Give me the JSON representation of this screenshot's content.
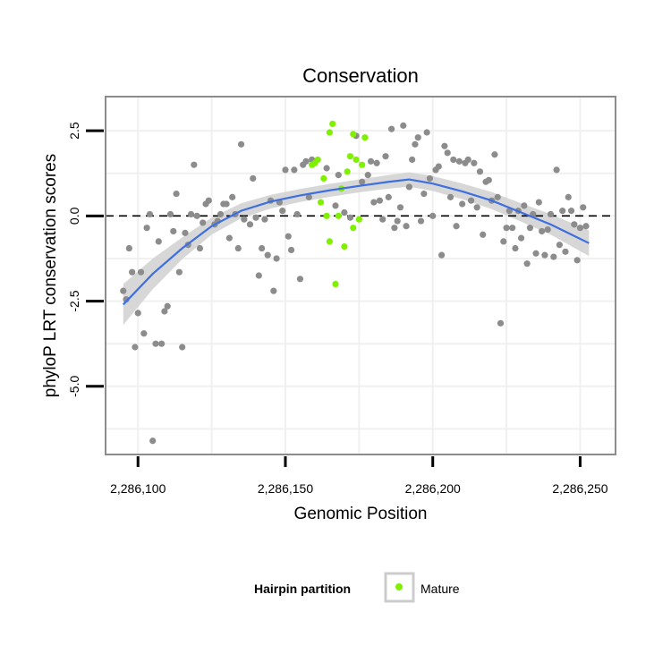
{
  "chart_data": {
    "type": "scatter",
    "title": "Conservation",
    "xlabel": "Genomic Position",
    "ylabel": "phyloP LRT conservation scores",
    "xlim": [
      2286089,
      2286262
    ],
    "ylim": [
      -7.0,
      3.5
    ],
    "x_ticks": [
      {
        "value": 2286100,
        "label": "2,286,100"
      },
      {
        "value": 2286150,
        "label": "2,286,150"
      },
      {
        "value": 2286200,
        "label": "2,286,200"
      },
      {
        "value": 2286250,
        "label": "2,286,250"
      }
    ],
    "y_ticks": [
      {
        "value": 2.5,
        "label": "2.5"
      },
      {
        "value": 0.0,
        "label": "0.0"
      },
      {
        "value": -2.5,
        "label": "-2.5"
      },
      {
        "value": -5.0,
        "label": "-5.0"
      }
    ],
    "reference_line": {
      "y": 0,
      "style": "dashed"
    },
    "grid": true,
    "colors": {
      "other": "#8c8c8c",
      "mature": "#7ff000",
      "smooth": "#3d6fe0",
      "ribbon": "#d3d3d3",
      "panel_border": "#8c8c8c",
      "grid": "#f0f0f0"
    },
    "legend": {
      "title": "Hairpin partition",
      "position": "bottom",
      "entries": [
        "Mature"
      ]
    },
    "series": [
      {
        "name": "",
        "color": "other",
        "points": [
          [
            2286095,
            -2.2
          ],
          [
            2286096,
            -2.45
          ],
          [
            2286097,
            -0.95
          ],
          [
            2286098,
            -1.65
          ],
          [
            2286099,
            -3.85
          ],
          [
            2286100,
            -2.85
          ],
          [
            2286101,
            -1.65
          ],
          [
            2286102,
            -3.45
          ],
          [
            2286103,
            -0.35
          ],
          [
            2286104,
            0.05
          ],
          [
            2286105,
            -6.6
          ],
          [
            2286106,
            -3.75
          ],
          [
            2286107,
            -0.75
          ],
          [
            2286108,
            -3.75
          ],
          [
            2286109,
            -2.8
          ],
          [
            2286110,
            -2.65
          ],
          [
            2286111,
            0.05
          ],
          [
            2286112,
            -0.45
          ],
          [
            2286113,
            0.65
          ],
          [
            2286114,
            -1.65
          ],
          [
            2286115,
            -3.85
          ],
          [
            2286116,
            -0.5
          ],
          [
            2286117,
            -0.85
          ],
          [
            2286118,
            0.05
          ],
          [
            2286119,
            1.5
          ],
          [
            2286120,
            0.0
          ],
          [
            2286121,
            -0.95
          ],
          [
            2286122,
            -0.2
          ],
          [
            2286123,
            0.35
          ],
          [
            2286124,
            0.45
          ],
          [
            2286126,
            -0.25
          ],
          [
            2286127,
            -0.15
          ],
          [
            2286128,
            0.05
          ],
          [
            2286129,
            0.35
          ],
          [
            2286130,
            0.35
          ],
          [
            2286131,
            -0.65
          ],
          [
            2286132,
            0.55
          ],
          [
            2286133,
            0.05
          ],
          [
            2286134,
            -0.95
          ],
          [
            2286135,
            2.1
          ],
          [
            2286136,
            -0.1
          ],
          [
            2286138,
            -0.25
          ],
          [
            2286139,
            1.1
          ],
          [
            2286140,
            -0.05
          ],
          [
            2286141,
            -1.75
          ],
          [
            2286142,
            -0.95
          ],
          [
            2286143,
            -0.1
          ],
          [
            2286144,
            -1.15
          ],
          [
            2286145,
            0.45
          ],
          [
            2286146,
            -2.2
          ],
          [
            2286147,
            -1.25
          ],
          [
            2286148,
            0.4
          ],
          [
            2286149,
            0.15
          ],
          [
            2286150,
            1.35
          ],
          [
            2286151,
            -0.6
          ],
          [
            2286152,
            -1.0
          ],
          [
            2286153,
            1.35
          ],
          [
            2286154,
            0.05
          ],
          [
            2286155,
            -1.85
          ],
          [
            2286156,
            1.5
          ],
          [
            2286157,
            1.6
          ],
          [
            2286158,
            0.55
          ],
          [
            2286159,
            1.65
          ],
          [
            2286164,
            1.4
          ],
          [
            2286167,
            0.3
          ],
          [
            2286168,
            1.2
          ],
          [
            2286170,
            0.1
          ],
          [
            2286172,
            -0.05
          ],
          [
            2286174,
            2.35
          ],
          [
            2286176,
            1.0
          ],
          [
            2286178,
            1.2
          ],
          [
            2286179,
            1.6
          ],
          [
            2286180,
            0.4
          ],
          [
            2286181,
            1.55
          ],
          [
            2286182,
            0.45
          ],
          [
            2286183,
            -0.1
          ],
          [
            2286184,
            1.75
          ],
          [
            2286185,
            0.55
          ],
          [
            2286186,
            2.55
          ],
          [
            2286187,
            -0.35
          ],
          [
            2286188,
            -0.15
          ],
          [
            2286189,
            0.25
          ],
          [
            2286190,
            2.65
          ],
          [
            2286191,
            -0.3
          ],
          [
            2286192,
            0.85
          ],
          [
            2286193,
            1.65
          ],
          [
            2286194,
            2.1
          ],
          [
            2286195,
            2.3
          ],
          [
            2286196,
            -0.15
          ],
          [
            2286197,
            0.65
          ],
          [
            2286198,
            2.45
          ],
          [
            2286199,
            1.1
          ],
          [
            2286200,
            0.0
          ],
          [
            2286201,
            1.35
          ],
          [
            2286202,
            1.45
          ],
          [
            2286203,
            -1.15
          ],
          [
            2286204,
            2.05
          ],
          [
            2286205,
            1.85
          ],
          [
            2286206,
            0.55
          ],
          [
            2286207,
            1.65
          ],
          [
            2286208,
            -0.3
          ],
          [
            2286209,
            1.6
          ],
          [
            2286210,
            0.35
          ],
          [
            2286211,
            1.55
          ],
          [
            2286212,
            1.65
          ],
          [
            2286213,
            0.45
          ],
          [
            2286214,
            1.55
          ],
          [
            2286215,
            0.25
          ],
          [
            2286216,
            1.3
          ],
          [
            2286217,
            -0.55
          ],
          [
            2286218,
            1.0
          ],
          [
            2286219,
            1.05
          ],
          [
            2286220,
            0.45
          ],
          [
            2286221,
            1.8
          ],
          [
            2286222,
            0.55
          ],
          [
            2286223,
            -3.15
          ],
          [
            2286224,
            -0.75
          ],
          [
            2286225,
            -0.35
          ],
          [
            2286226,
            0.15
          ],
          [
            2286227,
            -0.35
          ],
          [
            2286228,
            -0.95
          ],
          [
            2286229,
            0.15
          ],
          [
            2286230,
            -0.65
          ],
          [
            2286231,
            0.3
          ],
          [
            2286232,
            -1.4
          ],
          [
            2286233,
            -0.35
          ],
          [
            2286234,
            0.05
          ],
          [
            2286235,
            -1.1
          ],
          [
            2286236,
            0.4
          ],
          [
            2286237,
            -0.45
          ],
          [
            2286238,
            -1.15
          ],
          [
            2286239,
            -0.4
          ],
          [
            2286240,
            0.05
          ],
          [
            2286241,
            -1.2
          ],
          [
            2286242,
            1.35
          ],
          [
            2286243,
            -0.85
          ],
          [
            2286244,
            0.15
          ],
          [
            2286245,
            -1.05
          ],
          [
            2286246,
            0.55
          ],
          [
            2286247,
            0.15
          ],
          [
            2286248,
            -0.25
          ],
          [
            2286249,
            -1.3
          ],
          [
            2286250,
            -0.35
          ],
          [
            2286251,
            0.25
          ],
          [
            2286252,
            -0.3
          ]
        ]
      },
      {
        "name": "Mature",
        "color": "mature",
        "points": [
          [
            2286159,
            1.5
          ],
          [
            2286160,
            1.55
          ],
          [
            2286161,
            1.65
          ],
          [
            2286162,
            0.4
          ],
          [
            2286163,
            1.1
          ],
          [
            2286164,
            0.0
          ],
          [
            2286165,
            -0.75
          ],
          [
            2286165,
            2.45
          ],
          [
            2286166,
            2.7
          ],
          [
            2286167,
            -2.0
          ],
          [
            2286168,
            0.0
          ],
          [
            2286169,
            0.8
          ],
          [
            2286170,
            -0.9
          ],
          [
            2286171,
            1.3
          ],
          [
            2286172,
            1.75
          ],
          [
            2286173,
            -0.35
          ],
          [
            2286173,
            2.4
          ],
          [
            2286174,
            1.65
          ],
          [
            2286175,
            -0.1
          ],
          [
            2286176,
            1.5
          ],
          [
            2286177,
            2.3
          ]
        ]
      }
    ],
    "smooth": {
      "x": [
        2286095,
        2286105,
        2286115,
        2286125,
        2286135,
        2286145,
        2286155,
        2286165,
        2286175,
        2286185,
        2286192,
        2286200,
        2286210,
        2286220,
        2286230,
        2286240,
        2286253
      ],
      "y": [
        -2.6,
        -1.7,
        -0.95,
        -0.3,
        0.15,
        0.42,
        0.6,
        0.75,
        0.88,
        1.0,
        1.07,
        0.95,
        0.72,
        0.45,
        0.1,
        -0.25,
        -0.8
      ],
      "band": [
        0.6,
        0.45,
        0.32,
        0.25,
        0.22,
        0.2,
        0.19,
        0.19,
        0.19,
        0.2,
        0.21,
        0.22,
        0.23,
        0.25,
        0.27,
        0.3,
        0.38
      ]
    }
  }
}
